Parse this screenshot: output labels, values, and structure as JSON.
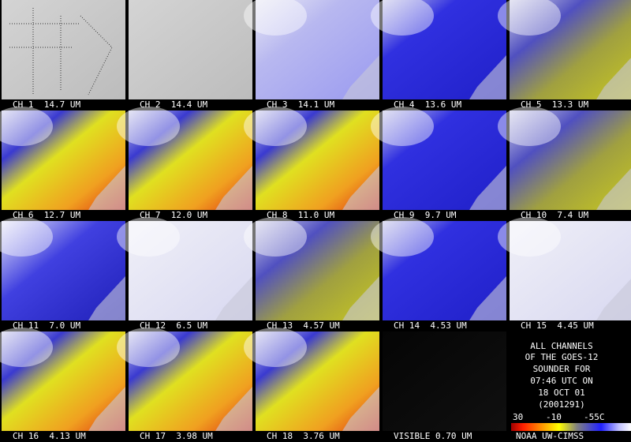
{
  "panels": [
    {
      "label": "CH 1  14.7 UM"
    },
    {
      "label": "CH 2  14.4 UM"
    },
    {
      "label": "CH 3  14.1 UM"
    },
    {
      "label": "CH 4  13.6 UM"
    },
    {
      "label": "CH 5  13.3 UM"
    },
    {
      "label": "CH 6  12.7 UM"
    },
    {
      "label": "CH 7  12.0 UM"
    },
    {
      "label": "CH 8  11.0 UM"
    },
    {
      "label": "CH 9  9.7 UM"
    },
    {
      "label": "CH 10  7.4 UM"
    },
    {
      "label": "CH 11  7.0 UM"
    },
    {
      "label": "CH 12  6.5 UM"
    },
    {
      "label": "CH 13  4.57 UM"
    },
    {
      "label": "CH 14  4.53 UM"
    },
    {
      "label": "CH 15  4.45 UM"
    },
    {
      "label": "CH 16  4.13 UM"
    },
    {
      "label": "CH 17  3.98 UM"
    },
    {
      "label": "CH 18  3.76 UM"
    },
    {
      "label": "VISIBLE 0.70 UM"
    }
  ],
  "info": {
    "lines": [
      "ALL CHANNELS",
      "OF THE GOES-12",
      "SOUNDER FOR",
      "07:46 UTC ON",
      "18 OCT 01",
      "(2001291)"
    ],
    "colorbar_labels": [
      "30",
      "-10",
      "-55C"
    ],
    "credit": "NOAA UW-CIMSS"
  }
}
